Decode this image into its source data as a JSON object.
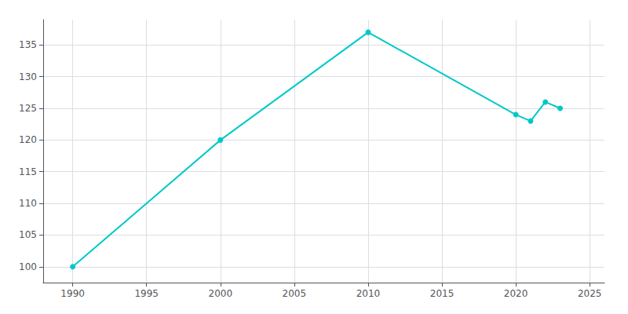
{
  "chart_data": {
    "type": "line",
    "x": [
      1990,
      2000,
      2010,
      2020,
      2021,
      2022,
      2023
    ],
    "values": [
      100,
      120,
      137,
      124,
      123,
      126,
      125
    ],
    "color": "#00C8C8",
    "marker": "circle",
    "xlim": [
      1988,
      2026
    ],
    "xticks": [
      1990,
      1995,
      2000,
      2005,
      2010,
      2015,
      2020,
      2025
    ],
    "ylim": [
      97.5,
      139
    ],
    "yticks": [
      100,
      105,
      110,
      115,
      120,
      125,
      130,
      135
    ],
    "grid": true
  }
}
